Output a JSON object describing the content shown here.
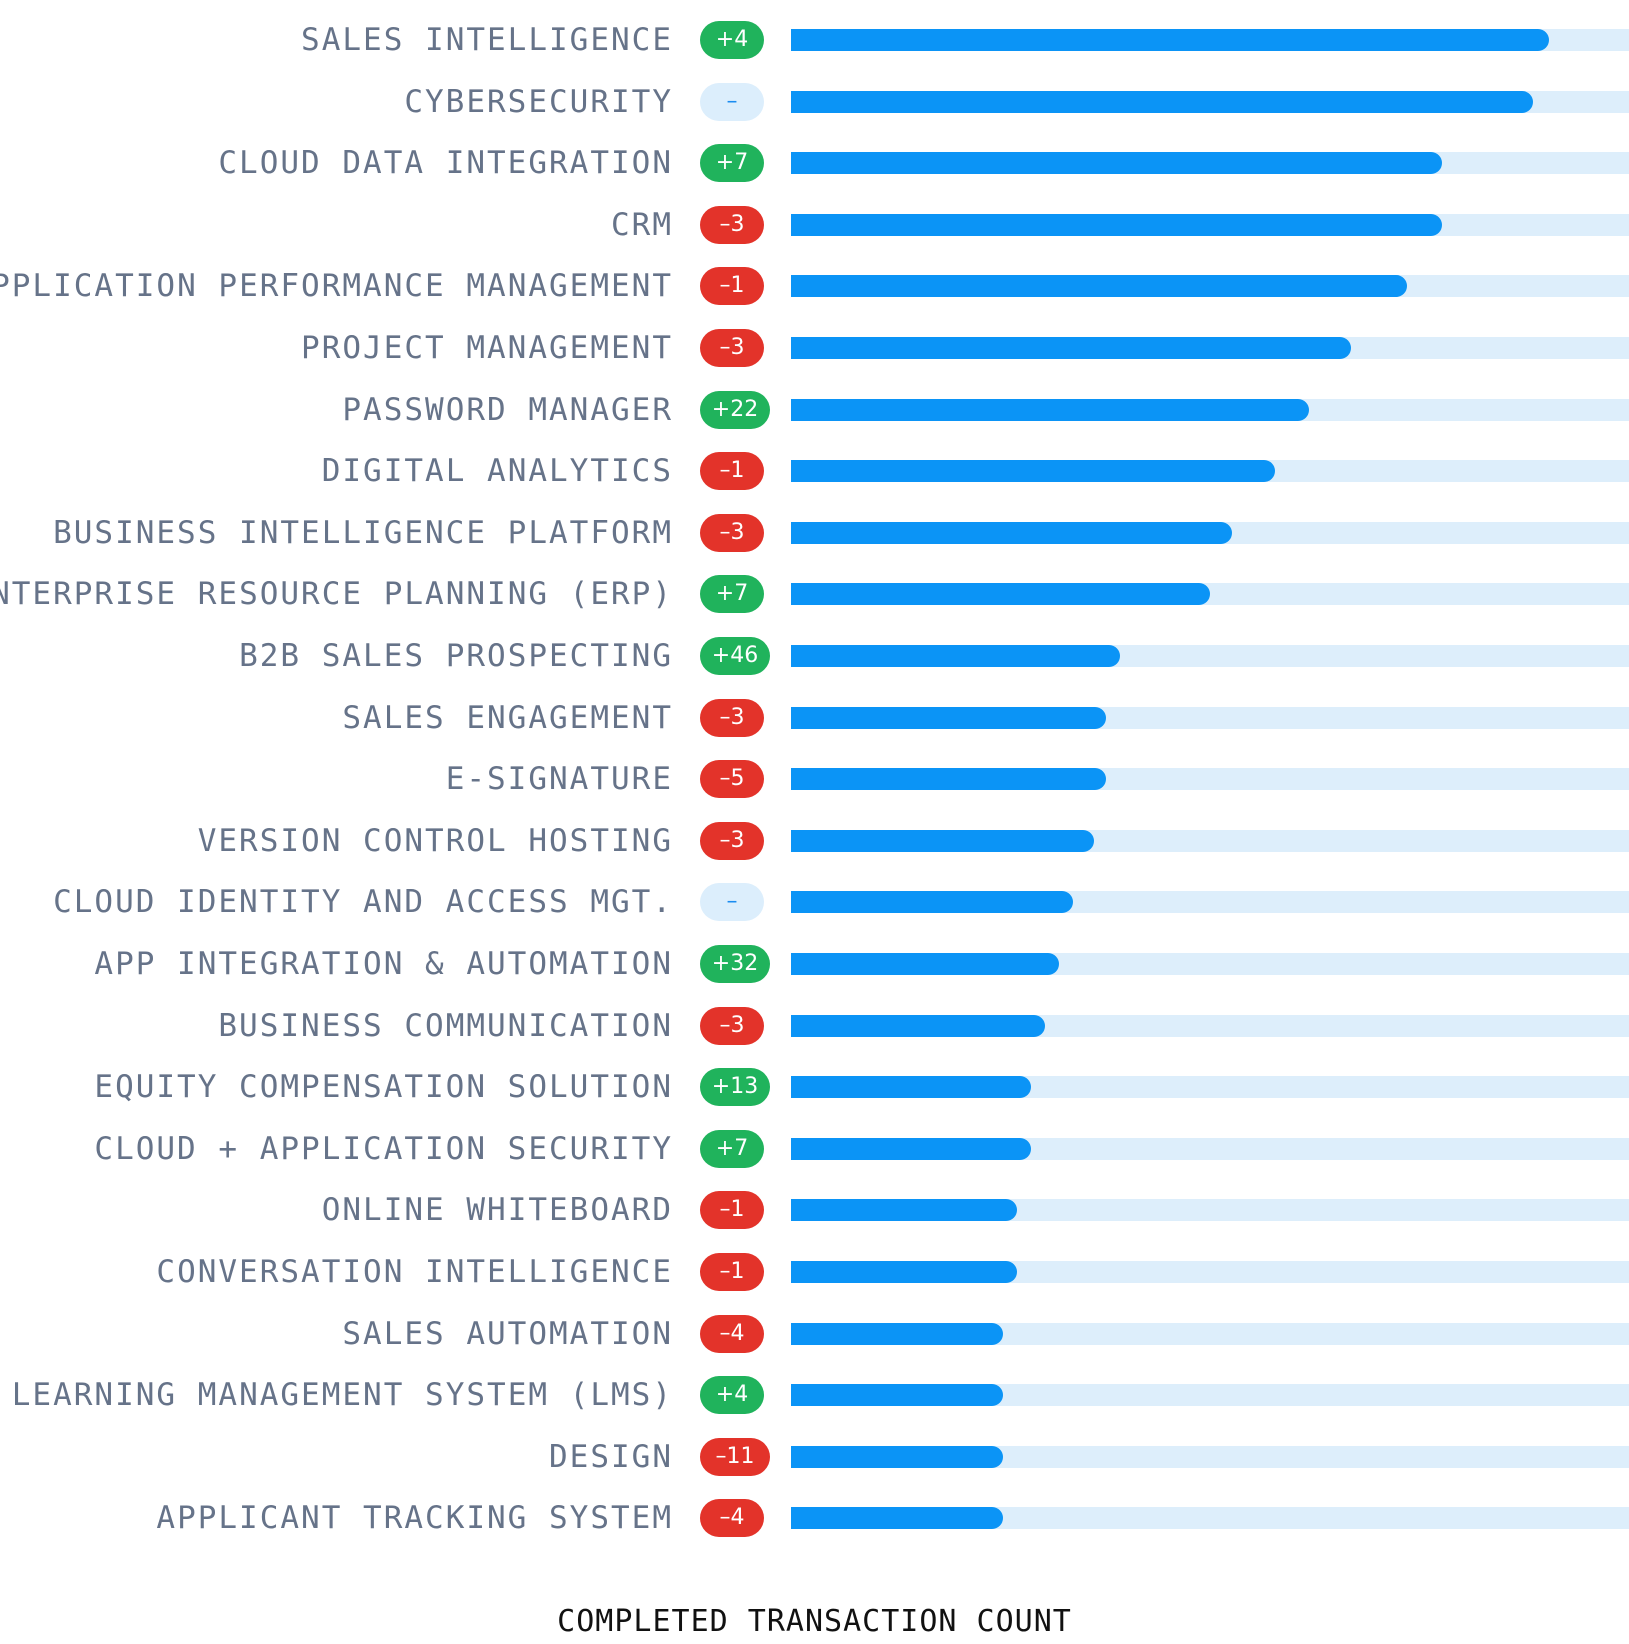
{
  "chart_data": {
    "type": "bar",
    "orientation": "horizontal",
    "xlabel": "COMPLETED TRANSACTION COUNT",
    "ylabel": "",
    "title": "",
    "xlim": [
      0,
      1
    ],
    "value_unit": "fraction of axis (no tick labels shown)",
    "categories": [
      "SALES INTELLIGENCE",
      "CYBERSECURITY",
      "CLOUD DATA INTEGRATION",
      "CRM",
      "APPLICATION PERFORMANCE MANAGEMENT",
      "PROJECT MANAGEMENT",
      "PASSWORD MANAGER",
      "DIGITAL ANALYTICS",
      "BUSINESS INTELLIGENCE PLATFORM",
      "ENTERPRISE RESOURCE PLANNING (ERP)",
      "B2B SALES PROSPECTING",
      "SALES ENGAGEMENT",
      "E-SIGNATURE",
      "VERSION CONTROL HOSTING",
      "CLOUD IDENTITY AND ACCESS MGT.",
      "APP INTEGRATION & AUTOMATION",
      "BUSINESS COMMUNICATION",
      "EQUITY COMPENSATION SOLUTION",
      "CLOUD + APPLICATION SECURITY",
      "ONLINE WHITEBOARD",
      "CONVERSATION INTELLIGENCE",
      "SALES AUTOMATION",
      "LEARNING MANAGEMENT SYSTEM (LMS)",
      "DESIGN",
      "APPLICANT TRACKING SYSTEM"
    ],
    "values": [
      0.905,
      0.885,
      0.777,
      0.777,
      0.735,
      0.668,
      0.618,
      0.577,
      0.526,
      0.5,
      0.393,
      0.376,
      0.376,
      0.361,
      0.337,
      0.32,
      0.303,
      0.286,
      0.286,
      0.27,
      0.27,
      0.253,
      0.253,
      0.253,
      0.253
    ],
    "rank_changes": [
      "+4",
      "–",
      "+7",
      "–3",
      "–1",
      "–3",
      "+22",
      "–1",
      "–3",
      "+7",
      "+46",
      "–3",
      "–5",
      "–3",
      "–",
      "+32",
      "–3",
      "+13",
      "+7",
      "–1",
      "–1",
      "–4",
      "+4",
      "–11",
      "–4"
    ],
    "rank_change_directions": [
      "up",
      "flat",
      "up",
      "down",
      "down",
      "down",
      "up",
      "down",
      "down",
      "up",
      "up",
      "down",
      "down",
      "down",
      "flat",
      "up",
      "down",
      "up",
      "up",
      "down",
      "down",
      "down",
      "up",
      "down",
      "down"
    ]
  },
  "colors": {
    "bar_fill": "#0b94f6",
    "bar_track": "#ddeefb",
    "badge_up": "#20b35c",
    "badge_down": "#e3332a",
    "badge_flat": "#dceefc",
    "label_text": "#667389"
  }
}
